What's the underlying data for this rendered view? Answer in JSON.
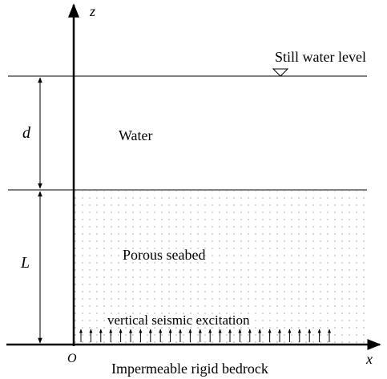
{
  "axes": {
    "z": "z",
    "x": "x",
    "origin": "O"
  },
  "dimensions": {
    "water_depth": "d",
    "seabed_thickness": "L"
  },
  "labels": {
    "still_water": "Still water level",
    "water": "Water",
    "seabed": "Porous seabed",
    "excitation": "vertical seismic excitation",
    "bedrock": "Impermeable rigid bedrock"
  }
}
